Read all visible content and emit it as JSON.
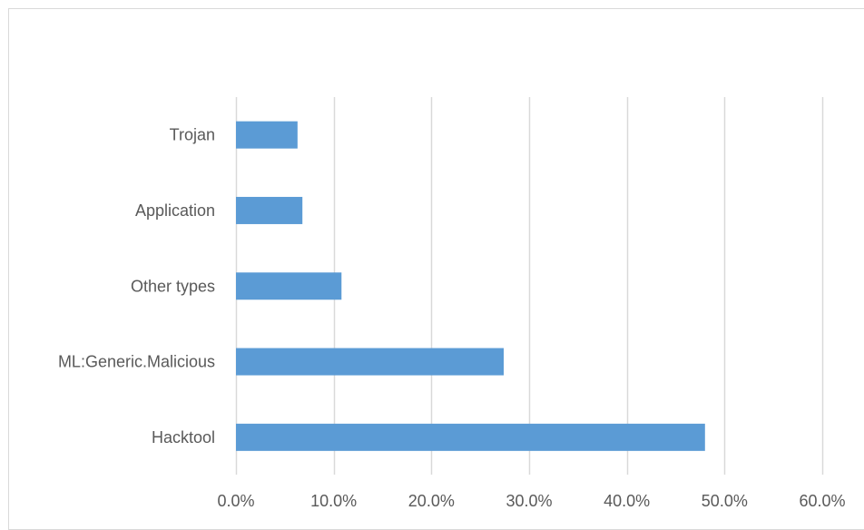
{
  "chart_data": {
    "type": "bar",
    "orientation": "horizontal",
    "categories": [
      "Trojan",
      "Application",
      "Other types",
      "ML:Generic.Malicious",
      "Hacktool"
    ],
    "values": [
      6.3,
      6.8,
      10.8,
      27.4,
      48.0
    ],
    "value_unit": "%",
    "xlim": [
      0,
      60
    ],
    "x_ticks": [
      0,
      10,
      20,
      30,
      40,
      50,
      60
    ],
    "x_tick_labels": [
      "0.0%",
      "10.0%",
      "20.0%",
      "30.0%",
      "40.0%",
      "50.0%",
      "60.0%"
    ],
    "grid": "vertical",
    "legend": "none",
    "title": "",
    "xlabel": "",
    "ylabel": "",
    "bar_color": "#5b9bd5",
    "gridline_color": "#d9d9d9",
    "label_color": "#595959"
  }
}
